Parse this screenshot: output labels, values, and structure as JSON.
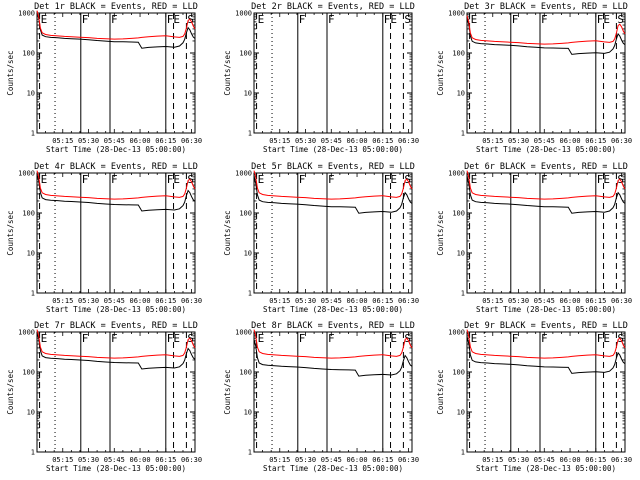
{
  "colors": {
    "events": "#000000",
    "lld": "#ff0000",
    "axes": "#000000",
    "background": "#ffffff"
  },
  "shared": {
    "x_title": "Start Time (28-Dec-13 05:00:00)",
    "y_title": "Counts/sec",
    "x_ticks": [
      "05:15",
      "05:30",
      "05:45",
      "06:00",
      "06:15",
      "06:30"
    ],
    "y_ticks": [
      "1",
      "10",
      "100",
      "1000"
    ]
  },
  "event_markers": [
    {
      "label": "E",
      "time_min": 1.5,
      "style": "dashed"
    },
    {
      "label": "",
      "time_min": 10.5,
      "style": "dotted"
    },
    {
      "label": "F",
      "time_min": 25.5,
      "style": "solid"
    },
    {
      "label": "F",
      "time_min": 42.5,
      "style": "solid"
    },
    {
      "label": "FE",
      "time_min": 75.0,
      "style": "solid"
    },
    {
      "label": "",
      "time_min": 79.5,
      "style": "dashed"
    },
    {
      "label": "S",
      "time_min": 87.0,
      "style": "dashed"
    }
  ],
  "chart_data": [
    {
      "type": "line",
      "title": "Det 1r BLACK = Events, RED = LLD",
      "xlabel": "Start Time (28-Dec-13 05:00:00)",
      "ylabel": "Counts/sec",
      "xlim_min": [
        0,
        92
      ],
      "ylim": [
        1,
        1000
      ],
      "yscale": "log",
      "has_data": true,
      "events_scale": 1.0,
      "lld_scale": 1.0
    },
    {
      "type": "line",
      "title": "Det 2r BLACK = Events, RED = LLD",
      "xlabel": "Start Time (28-Dec-13 05:00:00)",
      "ylabel": "Counts/sec",
      "xlim_min": [
        0,
        92
      ],
      "ylim": [
        1,
        1000
      ],
      "yscale": "log",
      "has_data": false,
      "events_scale": 0,
      "lld_scale": 0
    },
    {
      "type": "line",
      "title": "Det 3r BLACK = Events, RED = LLD",
      "xlabel": "Start Time (28-Dec-13 05:00:00)",
      "ylabel": "Counts/sec",
      "xlim_min": [
        0,
        92
      ],
      "ylim": [
        1,
        1000
      ],
      "yscale": "log",
      "has_data": true,
      "events_scale": 0.7,
      "lld_scale": 0.75
    },
    {
      "type": "line",
      "title": "Det 4r BLACK = Events, RED = LLD",
      "xlabel": "Start Time (28-Dec-13 05:00:00)",
      "ylabel": "Counts/sec",
      "xlim_min": [
        0,
        92
      ],
      "ylim": [
        1,
        1000
      ],
      "yscale": "log",
      "has_data": true,
      "events_scale": 0.85,
      "lld_scale": 1.0
    },
    {
      "type": "line",
      "title": "Det 5r BLACK = Events, RED = LLD",
      "xlabel": "Start Time (28-Dec-13 05:00:00)",
      "ylabel": "Counts/sec",
      "xlim_min": [
        0,
        92
      ],
      "ylim": [
        1,
        1000
      ],
      "yscale": "log",
      "has_data": true,
      "events_scale": 0.75,
      "lld_scale": 1.0
    },
    {
      "type": "line",
      "title": "Det 6r BLACK = Events, RED = LLD",
      "xlabel": "Start Time (28-Dec-13 05:00:00)",
      "ylabel": "Counts/sec",
      "xlim_min": [
        0,
        92
      ],
      "ylim": [
        1,
        1000
      ],
      "yscale": "log",
      "has_data": true,
      "events_scale": 0.75,
      "lld_scale": 1.0
    },
    {
      "type": "line",
      "title": "Det 7r BLACK = Events, RED = LLD",
      "xlabel": "Start Time (28-Dec-13 05:00:00)",
      "ylabel": "Counts/sec",
      "xlim_min": [
        0,
        92
      ],
      "ylim": [
        1,
        1000
      ],
      "yscale": "log",
      "has_data": true,
      "events_scale": 0.9,
      "lld_scale": 1.0
    },
    {
      "type": "line",
      "title": "Det 8r BLACK = Events, RED = LLD",
      "xlabel": "Start Time (28-Dec-13 05:00:00)",
      "ylabel": "Counts/sec",
      "xlim_min": [
        0,
        92
      ],
      "ylim": [
        1,
        1000
      ],
      "yscale": "log",
      "has_data": true,
      "events_scale": 0.6,
      "lld_scale": 1.0
    },
    {
      "type": "line",
      "title": "Det 9r BLACK = Events, RED = LLD",
      "xlabel": "Start Time (28-Dec-13 05:00:00)",
      "ylabel": "Counts/sec",
      "xlim_min": [
        0,
        92
      ],
      "ylim": [
        1,
        1000
      ],
      "yscale": "log",
      "has_data": true,
      "events_scale": 0.7,
      "lld_scale": 1.0
    }
  ],
  "base_profile": {
    "time_min": [
      0,
      1,
      2,
      3,
      5,
      8,
      12,
      16,
      20,
      25,
      30,
      35,
      40,
      45,
      50,
      55,
      59,
      61,
      65,
      70,
      75,
      80,
      83,
      85,
      86,
      87,
      88,
      89,
      90,
      91,
      92
    ],
    "events": [
      1100,
      750,
      380,
      280,
      255,
      245,
      240,
      232,
      228,
      222,
      215,
      205,
      198,
      192,
      190,
      188,
      186,
      132,
      138,
      142,
      145,
      140,
      150,
      180,
      220,
      320,
      430,
      380,
      300,
      250,
      230
    ],
    "lld": [
      1150,
      800,
      420,
      320,
      290,
      275,
      268,
      260,
      255,
      248,
      242,
      232,
      226,
      222,
      225,
      232,
      238,
      245,
      255,
      265,
      270,
      252,
      245,
      260,
      300,
      420,
      650,
      700,
      600,
      470,
      400
    ]
  }
}
